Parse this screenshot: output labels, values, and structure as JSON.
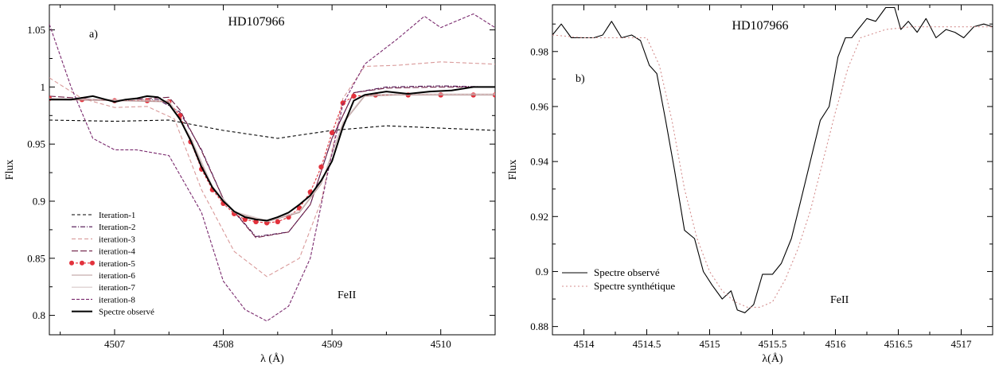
{
  "chart_data": [
    {
      "type": "line",
      "panel_label": "a)",
      "title": "HD107966",
      "annotation": "FeII",
      "xlabel": "λ (Å)",
      "ylabel": "Flux",
      "xlim": [
        4506.4,
        4510.5
      ],
      "ylim": [
        0.783,
        1.072
      ],
      "xticks": [
        4507,
        4508,
        4509,
        4510
      ],
      "xtick_labels": [
        "4507",
        "4508",
        "4509",
        "4510"
      ],
      "yticks": [
        0.8,
        0.85,
        0.9,
        0.95,
        1.0,
        1.05
      ],
      "ytick_labels": [
        "0.8",
        "0.85",
        "0.9",
        "0.95",
        "1",
        "1.05"
      ],
      "legend_position": "bottom-left",
      "series": [
        {
          "name": "Iteration-1",
          "color": "#000000",
          "dash": "4,3",
          "marker": "none",
          "x": [
            4506.4,
            4507.0,
            4507.5,
            4508.0,
            4508.5,
            4509.0,
            4509.5,
            4510.0,
            4510.5
          ],
          "y": [
            0.971,
            0.97,
            0.971,
            0.962,
            0.955,
            0.962,
            0.966,
            0.964,
            0.962
          ]
        },
        {
          "name": "Iteration-2",
          "color": "#4b0f4e",
          "dash": "6,2,1,2",
          "marker": "none",
          "x": [
            4506.4,
            4507.0,
            4507.4,
            4507.6,
            4507.8,
            4508.0,
            4508.3,
            4508.6,
            4508.8,
            4509.0,
            4509.2,
            4509.5,
            4510.0,
            4510.5
          ],
          "y": [
            0.99,
            0.988,
            0.989,
            0.978,
            0.945,
            0.902,
            0.869,
            0.873,
            0.897,
            0.955,
            0.995,
            1.0,
            1.001,
            1.0
          ]
        },
        {
          "name": "iteration-3",
          "color": "#d99a9a",
          "dash": "5,3",
          "marker": "none",
          "x": [
            4506.4,
            4506.7,
            4507.0,
            4507.3,
            4507.55,
            4507.8,
            4508.1,
            4508.4,
            4508.7,
            4508.9,
            4509.1,
            4509.3,
            4509.6,
            4510.0,
            4510.5
          ],
          "y": [
            1.008,
            0.99,
            0.982,
            0.983,
            0.972,
            0.91,
            0.856,
            0.834,
            0.85,
            0.9,
            0.99,
            1.018,
            1.019,
            1.022,
            1.02
          ]
        },
        {
          "name": "iteration-4",
          "color": "#6e1f45",
          "dash": "8,3",
          "marker": "none",
          "x": [
            4506.4,
            4507.0,
            4507.5,
            4507.6,
            4507.8,
            4508.0,
            4508.3,
            4508.6,
            4508.8,
            4509.0,
            4509.2,
            4509.5,
            4510.0,
            4510.5
          ],
          "y": [
            0.992,
            0.988,
            0.991,
            0.98,
            0.944,
            0.902,
            0.868,
            0.873,
            0.897,
            0.955,
            0.995,
            0.999,
            1.0,
            1.0
          ]
        },
        {
          "name": "iteration-5",
          "color": "#e2323c",
          "dash": "3,2",
          "marker": "dot",
          "x": [
            4506.4,
            4506.7,
            4507.0,
            4507.3,
            4507.5,
            4507.6,
            4507.7,
            4507.8,
            4507.9,
            4508.0,
            4508.1,
            4508.2,
            4508.3,
            4508.4,
            4508.5,
            4508.6,
            4508.7,
            4508.8,
            4508.9,
            4509.0,
            4509.1,
            4509.2,
            4509.4,
            4509.7,
            4510.0,
            4510.3,
            4510.5
          ],
          "y": [
            0.99,
            0.989,
            0.988,
            0.988,
            0.987,
            0.975,
            0.952,
            0.928,
            0.91,
            0.898,
            0.889,
            0.884,
            0.882,
            0.881,
            0.882,
            0.886,
            0.894,
            0.908,
            0.93,
            0.96,
            0.986,
            0.992,
            0.993,
            0.993,
            0.993,
            0.993,
            0.993
          ]
        },
        {
          "name": "iteration-6",
          "color": "#b79a9a",
          "dash": "",
          "marker": "none",
          "x": [
            4506.4,
            4507.0,
            4507.5,
            4507.7,
            4507.9,
            4508.1,
            4508.4,
            4508.7,
            4508.9,
            4509.1,
            4509.3,
            4509.6,
            4510.0,
            4510.5
          ],
          "y": [
            0.989,
            0.988,
            0.987,
            0.955,
            0.912,
            0.89,
            0.882,
            0.89,
            0.915,
            0.968,
            0.992,
            0.993,
            0.993,
            0.993
          ]
        },
        {
          "name": "iteration-7",
          "color": "#d8c8c8",
          "dash": "",
          "marker": "none",
          "x": [
            4506.4,
            4507.0,
            4507.5,
            4507.7,
            4507.9,
            4508.1,
            4508.4,
            4508.7,
            4508.9,
            4509.1,
            4509.3,
            4509.6,
            4510.0,
            4510.5
          ],
          "y": [
            0.99,
            0.989,
            0.988,
            0.956,
            0.913,
            0.891,
            0.883,
            0.891,
            0.916,
            0.969,
            0.993,
            0.994,
            0.994,
            0.994
          ]
        },
        {
          "name": "iteration-8",
          "color": "#7a2a6e",
          "dash": "4,2",
          "marker": "none",
          "x": [
            4506.4,
            4506.6,
            4506.8,
            4507.0,
            4507.2,
            4507.5,
            4507.8,
            4508.0,
            4508.2,
            4508.4,
            4508.6,
            4508.8,
            4508.95,
            4509.1,
            4509.3,
            4509.6,
            4509.85,
            4510.0,
            4510.15,
            4510.3,
            4510.5
          ],
          "y": [
            1.055,
            1.0,
            0.955,
            0.945,
            0.945,
            0.94,
            0.89,
            0.83,
            0.805,
            0.795,
            0.808,
            0.85,
            0.92,
            0.985,
            1.02,
            1.042,
            1.062,
            1.052,
            1.058,
            1.064,
            1.052
          ]
        },
        {
          "name": "Spectre observé",
          "color": "#000000",
          "dash": "",
          "marker": "none",
          "width": 2,
          "x": [
            4506.4,
            4506.6,
            4506.8,
            4507.0,
            4507.1,
            4507.2,
            4507.3,
            4507.4,
            4507.5,
            4507.6,
            4507.7,
            4507.8,
            4507.9,
            4508.0,
            4508.1,
            4508.2,
            4508.3,
            4508.4,
            4508.5,
            4508.6,
            4508.7,
            4508.8,
            4508.9,
            4509.0,
            4509.1,
            4509.2,
            4509.3,
            4509.5,
            4509.7,
            4509.9,
            4510.1,
            4510.3,
            4510.5
          ],
          "y": [
            0.989,
            0.989,
            0.992,
            0.987,
            0.989,
            0.99,
            0.992,
            0.991,
            0.985,
            0.972,
            0.953,
            0.93,
            0.912,
            0.9,
            0.891,
            0.886,
            0.884,
            0.883,
            0.886,
            0.89,
            0.897,
            0.905,
            0.918,
            0.935,
            0.965,
            0.988,
            0.993,
            0.996,
            0.994,
            0.996,
            0.997,
            1.0,
            1.0
          ]
        }
      ]
    },
    {
      "type": "line",
      "panel_label": "b)",
      "title": "HD107966",
      "annotation": "FeII",
      "xlabel": "λ(Å)",
      "ylabel": "Flux",
      "xlim": [
        4513.75,
        4517.25
      ],
      "ylim": [
        0.877,
        0.997
      ],
      "xticks": [
        4514,
        4514.5,
        4515,
        4515.5,
        4516,
        4516.5,
        4517
      ],
      "xtick_labels": [
        "4514",
        "4514.5",
        "4515",
        "4515.5",
        "4516",
        "4516.5",
        "4517"
      ],
      "yticks": [
        0.88,
        0.9,
        0.92,
        0.94,
        0.96,
        0.98
      ],
      "ytick_labels": [
        "0.88",
        "0.9",
        "0.92",
        "0.94",
        "0.96",
        "0.98"
      ],
      "legend_position": "bottom-left",
      "series": [
        {
          "name": "Spectre observé",
          "color": "#000000",
          "dash": "",
          "marker": "none",
          "x": [
            4513.75,
            4513.82,
            4513.9,
            4514.0,
            4514.08,
            4514.15,
            4514.22,
            4514.3,
            4514.38,
            4514.45,
            4514.52,
            4514.58,
            4514.65,
            4514.72,
            4514.8,
            4514.88,
            4514.95,
            4515.02,
            4515.1,
            4515.17,
            4515.22,
            4515.28,
            4515.35,
            4515.42,
            4515.5,
            4515.57,
            4515.65,
            4515.72,
            4515.8,
            4515.88,
            4515.95,
            4516.02,
            4516.08,
            4516.13,
            4516.18,
            4516.25,
            4516.32,
            4516.4,
            4516.47,
            4516.52,
            4516.58,
            4516.65,
            4516.72,
            4516.8,
            4516.88,
            4516.95,
            4517.02,
            4517.1,
            4517.18,
            4517.25
          ],
          "y": [
            0.986,
            0.99,
            0.985,
            0.985,
            0.985,
            0.986,
            0.991,
            0.985,
            0.986,
            0.984,
            0.975,
            0.972,
            0.955,
            0.937,
            0.915,
            0.912,
            0.9,
            0.895,
            0.89,
            0.893,
            0.886,
            0.885,
            0.888,
            0.899,
            0.899,
            0.903,
            0.912,
            0.925,
            0.94,
            0.955,
            0.96,
            0.978,
            0.985,
            0.985,
            0.988,
            0.992,
            0.991,
            0.996,
            0.996,
            0.988,
            0.991,
            0.987,
            0.992,
            0.985,
            0.988,
            0.987,
            0.985,
            0.989,
            0.99,
            0.989
          ]
        },
        {
          "name": "Spectre synthétique",
          "color": "#d48e8e",
          "dash": "2,3",
          "marker": "none",
          "x": [
            4513.75,
            4514.0,
            4514.25,
            4514.5,
            4514.6,
            4514.7,
            4514.8,
            4514.9,
            4515.0,
            4515.1,
            4515.2,
            4515.3,
            4515.4,
            4515.5,
            4515.6,
            4515.7,
            4515.8,
            4515.9,
            4516.0,
            4516.1,
            4516.2,
            4516.4,
            4516.6,
            4516.8,
            4517.0,
            4517.25
          ],
          "y": [
            0.986,
            0.985,
            0.985,
            0.985,
            0.975,
            0.955,
            0.93,
            0.912,
            0.9,
            0.893,
            0.889,
            0.887,
            0.887,
            0.889,
            0.897,
            0.908,
            0.922,
            0.94,
            0.958,
            0.974,
            0.985,
            0.988,
            0.989,
            0.989,
            0.989,
            0.989
          ]
        }
      ]
    }
  ]
}
